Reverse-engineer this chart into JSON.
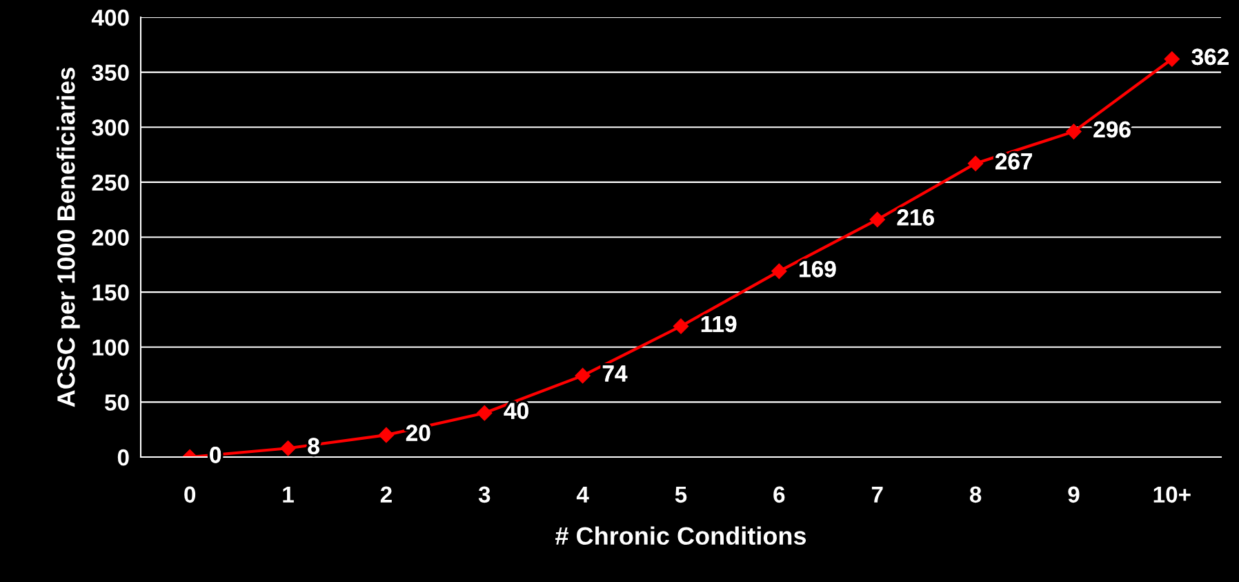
{
  "chart_data": {
    "type": "line",
    "xlabel": "# Chronic Conditions",
    "ylabel": "ACSC per 1000 Beneficiaries",
    "categories": [
      "0",
      "1",
      "2",
      "3",
      "4",
      "5",
      "6",
      "7",
      "8",
      "9",
      "10+"
    ],
    "series": [
      {
        "color": "#ff0000",
        "values": [
          0,
          8,
          20,
          40,
          74,
          119,
          169,
          216,
          267,
          296,
          362
        ]
      }
    ],
    "ylim": [
      0,
      400
    ],
    "yticks": [
      0,
      50,
      100,
      150,
      200,
      250,
      300,
      350,
      400
    ],
    "grid": "y",
    "marker": "diamond",
    "line_style": "solid",
    "data_labels": true
  }
}
